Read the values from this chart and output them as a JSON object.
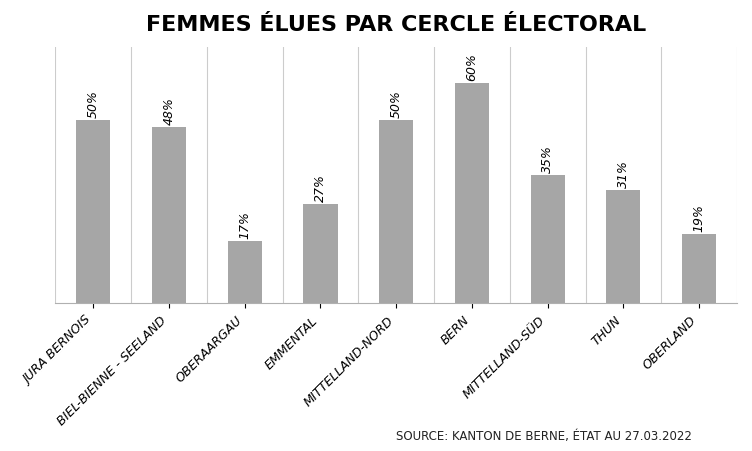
{
  "title": "FEMMES ÉLUES PAR CERCLE ÉLECTORAL",
  "categories": [
    "JURA BERNOIS",
    "BIEL-BIENNE - SEELAND",
    "OBERAARGAU",
    "EMMENTAL",
    "MITTELLAND-NORD",
    "BERN",
    "MITTELLAND-SÜD",
    "THUN",
    "OBERLAND"
  ],
  "values": [
    50,
    48,
    17,
    27,
    50,
    60,
    35,
    31,
    19
  ],
  "bar_color": "#a6a6a6",
  "bar_label_format": "{}%",
  "source_text": "SOURCE: KANTON DE BERNE, ÉTAT AU 27.03.2022",
  "ylim": [
    0,
    70
  ],
  "title_fontsize": 16,
  "label_fontsize": 9,
  "tick_label_fontsize": 9,
  "source_fontsize": 8.5,
  "background_color": "#ffffff",
  "grid_color": "#cccccc",
  "bar_width": 0.45
}
